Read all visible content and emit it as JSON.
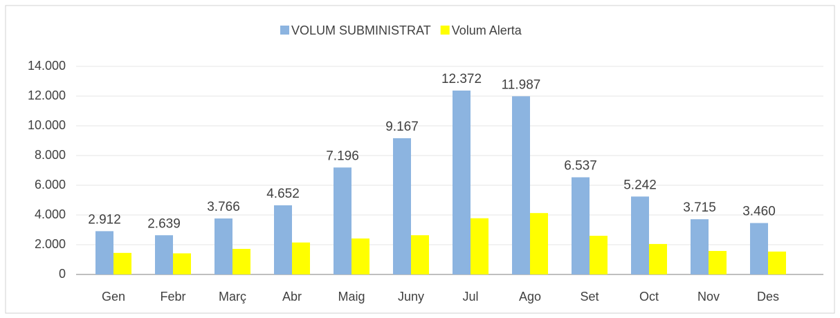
{
  "chart_data": {
    "type": "bar",
    "categories": [
      "Gen",
      "Febr",
      "Març",
      "Abr",
      "Maig",
      "Juny",
      "Jul",
      "Ago",
      "Set",
      "Oct",
      "Nov",
      "Des"
    ],
    "series": [
      {
        "name": "VOLUM SUBMINISTRAT",
        "color": "#8cb4e0",
        "values": [
          2912,
          2639,
          3766,
          4652,
          7196,
          9167,
          12372,
          11987,
          6537,
          5242,
          3715,
          3460
        ],
        "value_labels": [
          "2.912",
          "2.639",
          "3.766",
          "4.652",
          "7.196",
          "9.167",
          "12.372",
          "11.987",
          "6.537",
          "5.242",
          "3.715",
          "3.460"
        ]
      },
      {
        "name": "Volum Alerta",
        "color": "#ffff00",
        "values": [
          1450,
          1420,
          1720,
          2150,
          2420,
          2640,
          3780,
          4130,
          2600,
          2050,
          1580,
          1540
        ]
      }
    ],
    "ylim": [
      0,
      14000
    ],
    "yticks": [
      0,
      {
        "value": 2000,
        "label": "2.000"
      },
      {
        "value": 4000,
        "label": "4.000"
      },
      {
        "value": 6000,
        "label": "6.000"
      },
      {
        "value": 8000,
        "label": "8.000"
      },
      {
        "value": 10000,
        "label": "10.000"
      },
      {
        "value": 12000,
        "label": "12.000"
      },
      {
        "value": 14000,
        "label": "14.000"
      }
    ],
    "grid": true,
    "legend": "top"
  }
}
